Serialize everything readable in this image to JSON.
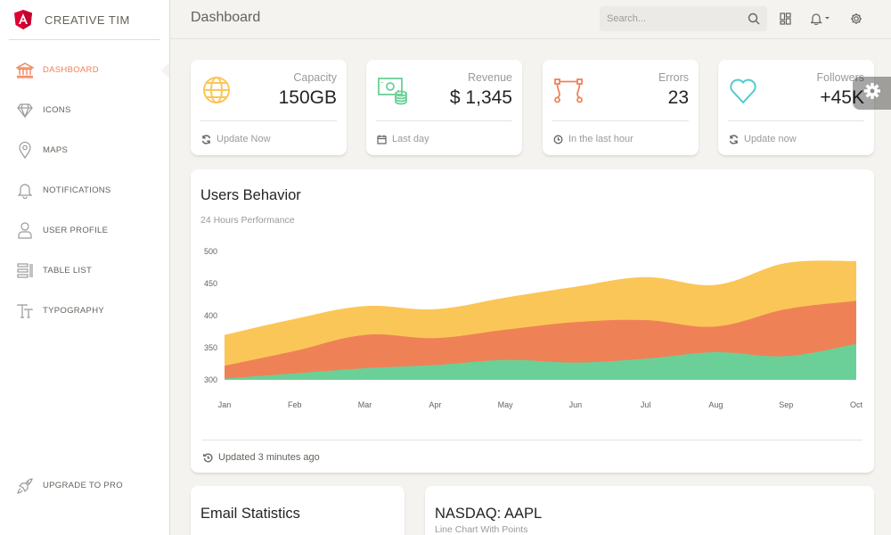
{
  "brand": {
    "name": "CREATIVE TIM",
    "logo_icon": "angular-logo-icon",
    "logo_color": "#dd0031"
  },
  "sidebar": {
    "items": [
      {
        "label": "DASHBOARD",
        "icon": "bank-icon",
        "active": true
      },
      {
        "label": "ICONS",
        "icon": "diamond-icon"
      },
      {
        "label": "MAPS",
        "icon": "map-pin-icon"
      },
      {
        "label": "NOTIFICATIONS",
        "icon": "bell-icon"
      },
      {
        "label": "USER PROFILE",
        "icon": "user-icon"
      },
      {
        "label": "TABLE LIST",
        "icon": "table-list-icon"
      },
      {
        "label": "TYPOGRAPHY",
        "icon": "typography-icon"
      }
    ],
    "upgrade": {
      "label": "UPGRADE TO PRO",
      "icon": "rocket-icon"
    }
  },
  "header": {
    "title": "Dashboard",
    "search_placeholder": "Search...",
    "icons": [
      "search-icon",
      "dashboard-grid-icon",
      "bell-icon",
      "gear-icon"
    ]
  },
  "stats": [
    {
      "label": "Capacity",
      "value": "150GB",
      "footer": "Update Now",
      "icon": "globe-icon",
      "footer_icon": "refresh-icon",
      "color": "#fbc658"
    },
    {
      "label": "Revenue",
      "value": "$ 1,345",
      "footer": "Last day",
      "icon": "money-coins-icon",
      "footer_icon": "calendar-icon",
      "color": "#6bd098"
    },
    {
      "label": "Errors",
      "value": "23",
      "footer": "In the last hour",
      "icon": "vector-icon",
      "footer_icon": "clock-icon",
      "color": "#ef8157"
    },
    {
      "label": "Followers",
      "value": "+45K",
      "footer": "Update now",
      "icon": "heart-icon",
      "footer_icon": "refresh-icon",
      "color": "#51cbce"
    }
  ],
  "users_behavior": {
    "title": "Users Behavior",
    "subtitle": "24 Hours Performance",
    "footer": "Updated 3 minutes ago",
    "footer_icon": "history-icon"
  },
  "chart_data": {
    "type": "area",
    "x": [
      "Jan",
      "Feb",
      "Mar",
      "Apr",
      "May",
      "Jun",
      "Jul",
      "Aug",
      "Sep",
      "Oct"
    ],
    "yticks": [
      300,
      350,
      400,
      450,
      500
    ],
    "ylim": [
      300,
      500
    ],
    "grid": false,
    "series": [
      {
        "color": "#fbc658",
        "values": [
          370,
          395,
          415,
          410,
          428,
          445,
          460,
          448,
          482,
          485
        ]
      },
      {
        "color": "#ef8157",
        "values": [
          322,
          345,
          370,
          365,
          378,
          390,
          393,
          383,
          410,
          423
        ]
      },
      {
        "color": "#6bd098",
        "values": [
          302,
          310,
          318,
          323,
          331,
          327,
          333,
          343,
          337,
          356
        ]
      }
    ]
  },
  "email_stats": {
    "title": "Email Statistics"
  },
  "nasdaq": {
    "title": "NASDAQ: AAPL",
    "subtitle": "Line Chart With Points"
  },
  "colors": {
    "accent": "#ef8157",
    "background": "#f4f3ef"
  }
}
